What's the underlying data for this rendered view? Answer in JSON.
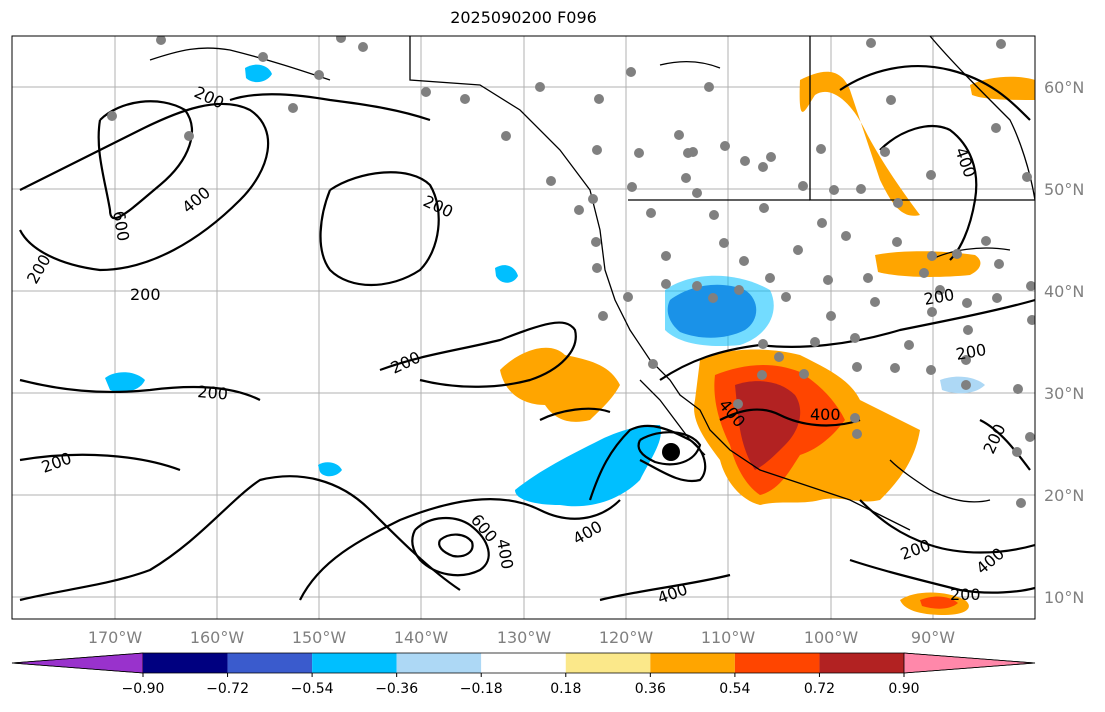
{
  "title": "2025090200 F096",
  "lat_labels": [
    "60°N",
    "50°N",
    "40°N",
    "30°N",
    "20°N",
    "10°N"
  ],
  "lon_labels": [
    "170°W",
    "160°W",
    "150°W",
    "140°W",
    "130°W",
    "120°W",
    "110°W",
    "100°W",
    "90°W"
  ],
  "colorbar": {
    "ticks": [
      "−0.90",
      "−0.72",
      "−0.54",
      "−0.36",
      "−0.18",
      "0.18",
      "0.36",
      "0.54",
      "0.72",
      "0.90"
    ],
    "colors": [
      "#9932cc",
      "#000080",
      "#3a5bcd",
      "#00bfff",
      "#add8f5",
      "#ffffff",
      "#fbe88a",
      "#ffa500",
      "#ff4500",
      "#b22222",
      "#ff88aa"
    ]
  },
  "contour_labels": [
    "200",
    "400",
    "600",
    "200",
    "200",
    "200",
    "200",
    "200",
    "400",
    "200",
    "200",
    "400",
    "200",
    "200",
    "400",
    "200",
    "400",
    "400",
    "600",
    "400",
    "200",
    "400"
  ],
  "colors": {
    "contour": "#000000",
    "station": "#808080",
    "grid": "#b0b0b0"
  }
}
